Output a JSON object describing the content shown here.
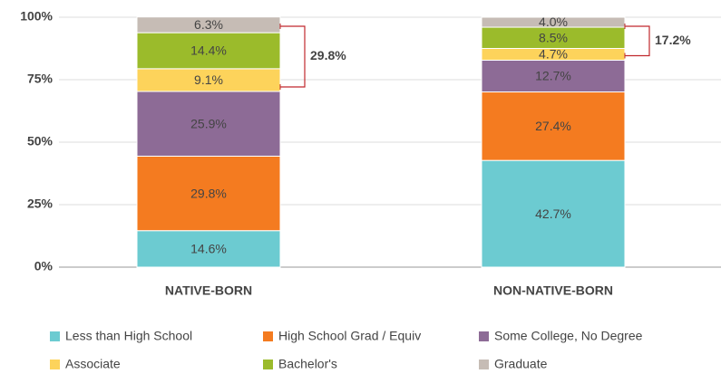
{
  "chart_data": {
    "type": "stacked_bar",
    "categories": [
      "NATIVE-BORN",
      "NON-NATIVE-BORN"
    ],
    "series": [
      {
        "name": "Less than High School",
        "color": "#6ccbd1",
        "values": [
          14.6,
          42.7
        ],
        "value_labels": [
          "14.6%",
          "42.7%"
        ]
      },
      {
        "name": "High School Grad / Equiv",
        "color": "#f47b20",
        "values": [
          29.8,
          27.4
        ],
        "value_labels": [
          "29.8%",
          "27.4%"
        ]
      },
      {
        "name": "Some College, No Degree",
        "color": "#8d6b96",
        "values": [
          25.9,
          12.7
        ],
        "value_labels": [
          "25.9%",
          "12.7%"
        ]
      },
      {
        "name": "Associate",
        "color": "#fdd35b",
        "values": [
          9.1,
          4.7
        ],
        "value_labels": [
          "9.1%",
          "4.7%"
        ]
      },
      {
        "name": "Bachelor's",
        "color": "#9bbb2b",
        "values": [
          14.4,
          8.5
        ],
        "value_labels": [
          "14.4%",
          "8.5%"
        ]
      },
      {
        "name": "Graduate",
        "color": "#c6bcb5",
        "values": [
          6.3,
          4.0
        ],
        "value_labels": [
          "6.3%",
          "4.0%"
        ]
      }
    ],
    "annotations": [
      "29.8%",
      "17.2%"
    ],
    "annotation_color": "#c0282d",
    "ylim": [
      0,
      100
    ],
    "yticks": [
      {
        "value": 0,
        "label": "0%"
      },
      {
        "value": 25,
        "label": "25%"
      },
      {
        "value": 50,
        "label": "50%"
      },
      {
        "value": 75,
        "label": "75%"
      },
      {
        "value": 100,
        "label": "100%"
      }
    ],
    "grid": true
  }
}
